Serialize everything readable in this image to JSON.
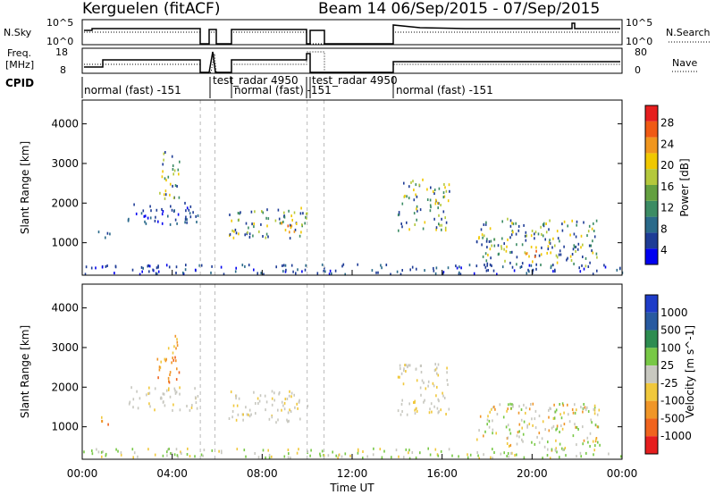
{
  "header": {
    "station": "Kerguelen (fitACF)",
    "beam_and_dates": "Beam 14  06/Sep/2015 - 07/Sep/2015"
  },
  "summary_panels": {
    "nsky_label": "N.Sky",
    "nsky_ticks": [
      "10^5",
      "10^0"
    ],
    "nsearch_label": "N.Search",
    "nsearch_ticks": [
      "10^5",
      "10^0"
    ],
    "freq_label": [
      "Freq.",
      "[MHz]"
    ],
    "freq_ticks": [
      "18",
      "8"
    ],
    "nave_label": "Nave",
    "nave_ticks": [
      "80",
      "0"
    ],
    "cpid_label": "CPID",
    "cpid_segments": [
      {
        "label": "normal (fast) -151",
        "start_h": 0.0,
        "end_h": 5.25
      },
      {
        "label": "test_radar 4950",
        "start_h": 5.9,
        "end_h": 6.5
      },
      {
        "label": "normal (fast) -151",
        "start_h": 6.5,
        "end_h": 10.0
      },
      {
        "label": "test_radar 4950",
        "start_h": 10.0,
        "end_h": 10.75
      },
      {
        "label": "normal (fast) -151",
        "start_h": 14.0,
        "end_h": 24.0
      }
    ]
  },
  "x_axis": {
    "label": "Time UT",
    "ticks": [
      "00:00",
      "04:00",
      "08:00",
      "12:00",
      "16:00",
      "20:00",
      "00:00"
    ],
    "range_h": [
      0,
      24
    ]
  },
  "colorbars": {
    "power": {
      "label": "Power [dB]",
      "ticks": [
        "28",
        "24",
        "20",
        "16",
        "12",
        "8",
        "4"
      ],
      "colors": [
        "#0000f0",
        "#1e3c96",
        "#2a6a8a",
        "#3c8c64",
        "#64a040",
        "#b4c83c",
        "#f0c800",
        "#f0961e",
        "#f05a14",
        "#e61e1e"
      ]
    },
    "velocity": {
      "label": "Velocity [m s^-1]",
      "ticks": [
        "1000",
        "500",
        "100",
        "25",
        "-25",
        "-100",
        "-500",
        "-1000"
      ],
      "colors": [
        "#1e3cc8",
        "#285aa0",
        "#2d8c50",
        "#78c846",
        "#c8c8c0",
        "#f0c83c",
        "#f09628",
        "#f0641e",
        "#e61e1e"
      ]
    }
  },
  "chart_data": [
    {
      "type": "heatmap",
      "panel": "power",
      "ylabel": "Slant Range [km]",
      "yticks": [
        "1000",
        "2000",
        "3000",
        "4000"
      ],
      "ylim": [
        180,
        4600
      ],
      "xlim_h": [
        0,
        24
      ],
      "scatter_regions_h_km": [
        {
          "t": [
            0.6,
            1.2
          ],
          "r": [
            1050,
            1300
          ],
          "level": "low"
        },
        {
          "t": [
            2.0,
            5.2
          ],
          "r": [
            1400,
            2000
          ],
          "level": "low"
        },
        {
          "t": [
            3.3,
            4.3
          ],
          "r": [
            2100,
            3300
          ],
          "level": "mid"
        },
        {
          "t": [
            6.5,
            10.0
          ],
          "r": [
            1100,
            1900
          ],
          "level": "mid"
        },
        {
          "t": [
            8.8,
            9.8
          ],
          "r": [
            1200,
            1500
          ],
          "level": "high"
        },
        {
          "t": [
            14.0,
            16.3
          ],
          "r": [
            1300,
            2600
          ],
          "level": "mid"
        },
        {
          "t": [
            17.5,
            23.0
          ],
          "r": [
            400,
            1600
          ],
          "level": "mid"
        },
        {
          "t": [
            19.5,
            20.3
          ],
          "r": [
            500,
            800
          ],
          "level": "high"
        },
        {
          "t": [
            0.0,
            24.0
          ],
          "r": [
            200,
            450
          ],
          "level": "low"
        }
      ],
      "dashed_gaps_h": [
        5.25,
        5.9,
        10.0,
        10.75
      ]
    },
    {
      "type": "heatmap",
      "panel": "velocity",
      "ylabel": "Slant Range [km]",
      "yticks": [
        "1000",
        "2000",
        "3000",
        "4000"
      ],
      "ylim": [
        180,
        4600
      ],
      "xlim_h": [
        0,
        24
      ],
      "scatter_regions_h_km": [
        {
          "t": [
            0.6,
            1.2
          ],
          "r": [
            1050,
            1300
          ],
          "level": "neg"
        },
        {
          "t": [
            2.0,
            5.2
          ],
          "r": [
            1400,
            2000
          ],
          "level": "zero"
        },
        {
          "t": [
            3.3,
            4.3
          ],
          "r": [
            2100,
            3300
          ],
          "level": "neg"
        },
        {
          "t": [
            6.5,
            10.0
          ],
          "r": [
            1100,
            1900
          ],
          "level": "zero"
        },
        {
          "t": [
            14.0,
            16.3
          ],
          "r": [
            1300,
            2600
          ],
          "level": "zero"
        },
        {
          "t": [
            17.5,
            23.0
          ],
          "r": [
            400,
            1600
          ],
          "level": "mixed"
        },
        {
          "t": [
            0.0,
            24.0
          ],
          "r": [
            200,
            450
          ],
          "level": "pos"
        }
      ],
      "dashed_gaps_h": [
        5.25,
        5.9,
        10.0,
        10.75
      ]
    }
  ]
}
